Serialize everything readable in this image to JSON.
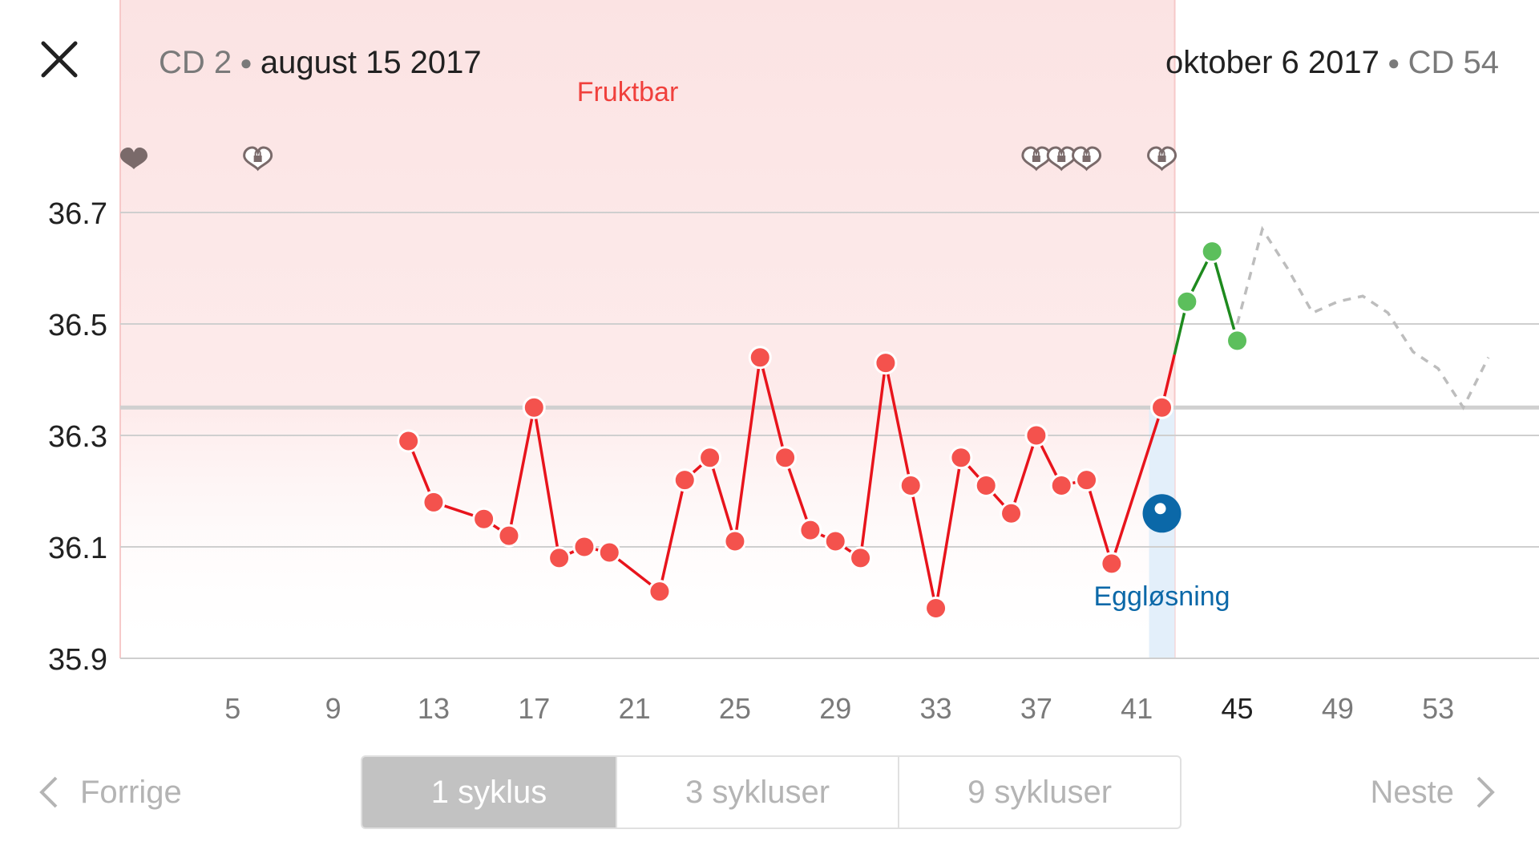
{
  "header": {
    "start_cd": "CD 2",
    "start_date": "august 15 2017",
    "end_date": "oktober 6 2017",
    "end_cd": "CD 54"
  },
  "icons": {
    "close": "close-icon",
    "heart": "heart-icon",
    "heart_lock": "heart-lock-icon",
    "prev": "chevron-left-icon",
    "next": "chevron-right-icon"
  },
  "fertile_label": "Fruktbar",
  "ovulation_label": "Eggløsning",
  "nav": {
    "prev_label": "Forrige",
    "next_label": "Neste"
  },
  "segments": [
    {
      "label": "1 syklus",
      "active": true
    },
    {
      "label": "3 sykluser",
      "active": false
    },
    {
      "label": "9 sykluser",
      "active": false
    }
  ],
  "colors": {
    "temp_line": "#e8141c",
    "temp_dot": "#f4524d",
    "post_line": "#1e8a1e",
    "post_dot": "#5cbf5c",
    "ovulation": "#0b68a8",
    "fertile_label": "#f0403c",
    "fertile_band": "#fbe3e3",
    "prediction": "#bdbdbd"
  },
  "chart_data": {
    "type": "line",
    "x_ticks": [
      5,
      9,
      13,
      17,
      21,
      25,
      29,
      33,
      37,
      41,
      45,
      49,
      53
    ],
    "x_highlight_tick": 45,
    "y_ticks": [
      "36.7",
      "36.5",
      "36.3",
      "36.1",
      "35.9"
    ],
    "ylim": [
      35.9,
      36.8
    ],
    "xlim": [
      1,
      57
    ],
    "coverline": 36.35,
    "fertile_window": [
      1,
      42
    ],
    "ovulation_day": 42,
    "ovulation_marker_value": 36.16,
    "series": [
      {
        "values": [
          [
            12,
            36.29
          ],
          [
            13,
            36.18
          ],
          [
            15,
            36.15
          ],
          [
            16,
            36.12
          ],
          [
            17,
            36.35
          ],
          [
            18,
            36.08
          ],
          [
            19,
            36.1
          ],
          [
            20,
            36.09
          ],
          [
            22,
            36.02
          ],
          [
            23,
            36.22
          ],
          [
            24,
            36.26
          ],
          [
            25,
            36.11
          ],
          [
            26,
            36.44
          ],
          [
            27,
            36.26
          ],
          [
            28,
            36.13
          ],
          [
            29,
            36.11
          ],
          [
            30,
            36.08
          ],
          [
            31,
            36.43
          ],
          [
            32,
            36.21
          ],
          [
            33,
            35.99
          ],
          [
            34,
            36.26
          ],
          [
            35,
            36.21
          ],
          [
            36,
            36.16
          ],
          [
            37,
            36.3
          ],
          [
            38,
            36.21
          ],
          [
            39,
            36.22
          ],
          [
            40,
            36.07
          ],
          [
            42,
            36.35
          ]
        ]
      },
      {
        "values": [
          [
            43,
            36.54
          ],
          [
            44,
            36.63
          ],
          [
            45,
            36.47
          ]
        ]
      },
      {
        "values": [
          [
            45,
            36.5
          ],
          [
            46,
            36.67
          ],
          [
            47,
            36.6
          ],
          [
            48,
            36.52
          ],
          [
            49,
            36.54
          ],
          [
            50,
            36.55
          ],
          [
            51,
            36.52
          ],
          [
            52,
            36.45
          ],
          [
            53,
            36.42
          ],
          [
            54,
            36.35
          ],
          [
            55,
            36.44
          ]
        ]
      }
    ],
    "markers": [
      {
        "day": 1,
        "type": "heart"
      },
      {
        "day": 6,
        "type": "heart_lock"
      },
      {
        "day": 37,
        "type": "heart_lock"
      },
      {
        "day": 38,
        "type": "heart_lock"
      },
      {
        "day": 39,
        "type": "heart_lock"
      },
      {
        "day": 42,
        "type": "heart_lock"
      }
    ]
  }
}
